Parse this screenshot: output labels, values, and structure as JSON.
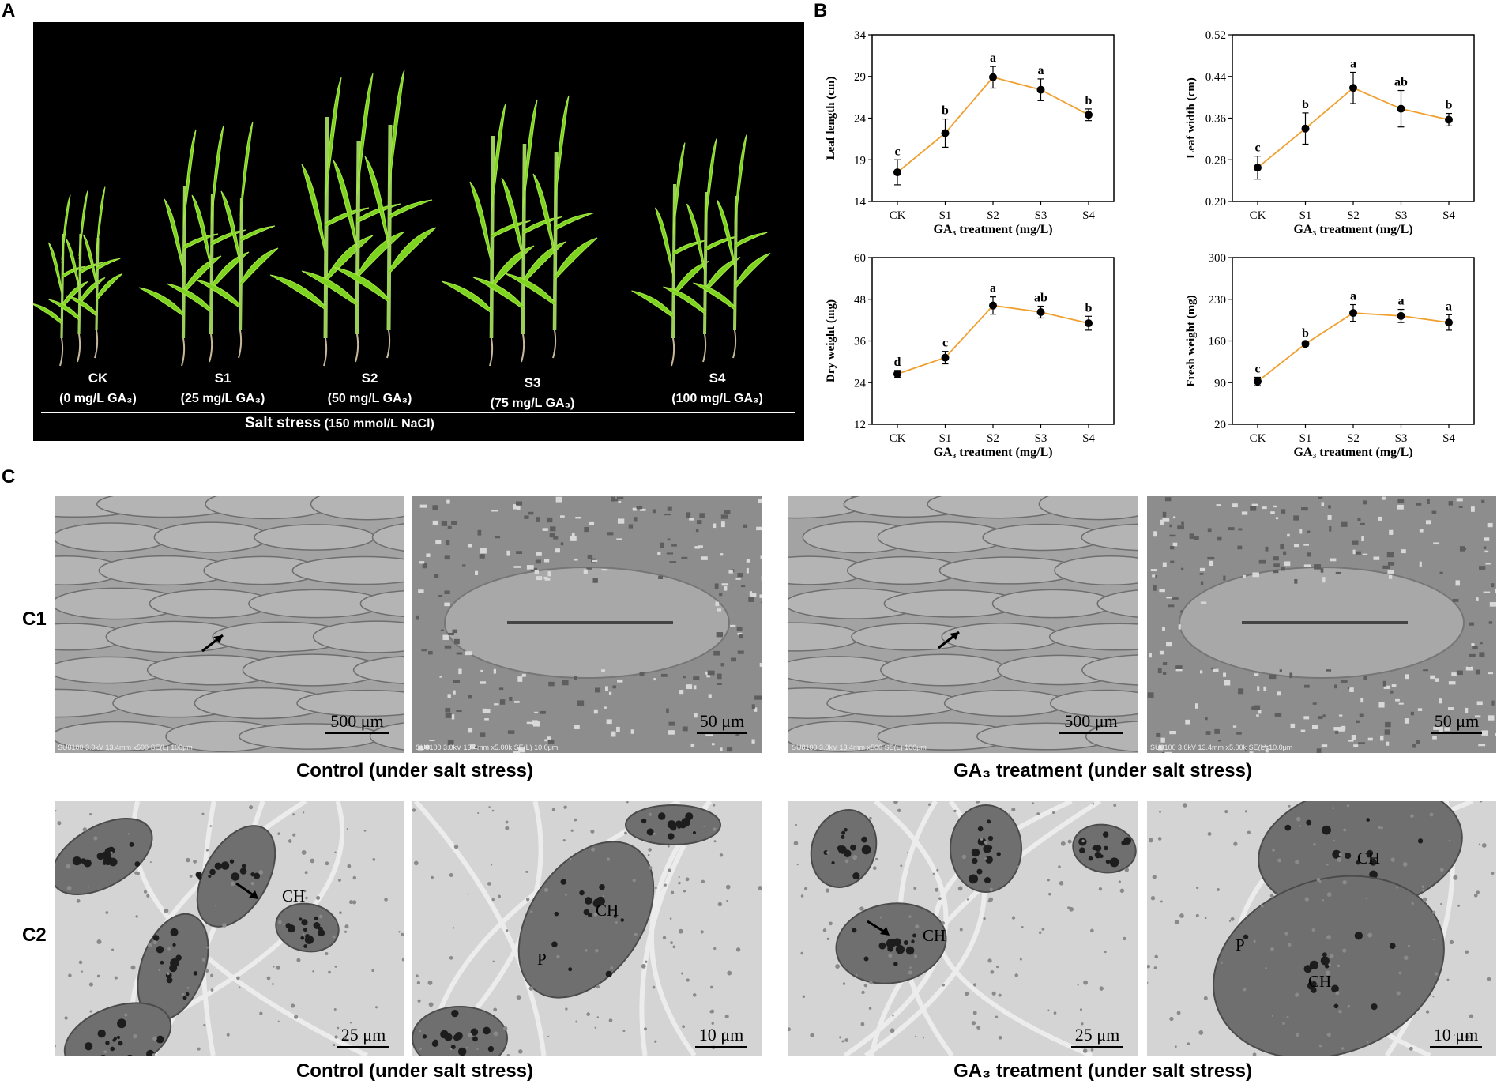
{
  "panel_labels": {
    "A": "A",
    "B": "B",
    "C": "C"
  },
  "panelA": {
    "groups": [
      {
        "code": "CK",
        "conc": "(0 mg/L GA₃)"
      },
      {
        "code": "S1",
        "conc": "(25 mg/L GA₃)"
      },
      {
        "code": "S2",
        "conc": "(50 mg/L GA₃)"
      },
      {
        "code": "S3",
        "conc": "(75 mg/L GA₃)"
      },
      {
        "code": "S4",
        "conc": "(100 mg/L GA₃)"
      }
    ],
    "salt_label": "Salt stress",
    "salt_conc": "(150 mmol/L NaCl)",
    "plant_color": "#7ed321"
  },
  "chart_data": [
    {
      "type": "line",
      "categories": [
        "CK",
        "S1",
        "S2",
        "S3",
        "S4"
      ],
      "values": [
        17.5,
        22.2,
        28.9,
        27.4,
        24.4
      ],
      "errors": [
        1.5,
        1.7,
        1.3,
        1.3,
        0.7
      ],
      "letters": [
        "c",
        "b",
        "a",
        "a",
        "b"
      ],
      "ylabel": "Leaf length (cm)",
      "xlabel": "GA₃ treatment (mg/L)",
      "ylim": [
        14,
        34
      ],
      "yticks": [
        "14",
        "19",
        "24",
        "29",
        "34"
      ],
      "line_color": "#f0a030",
      "grid": false
    },
    {
      "type": "line",
      "categories": [
        "CK",
        "S1",
        "S2",
        "S3",
        "S4"
      ],
      "values": [
        0.265,
        0.34,
        0.418,
        0.378,
        0.357
      ],
      "errors": [
        0.022,
        0.03,
        0.03,
        0.035,
        0.012
      ],
      "letters": [
        "c",
        "b",
        "a",
        "ab",
        "b"
      ],
      "ylabel": "Leaf width (cm)",
      "xlabel": "GA₃ treatment (mg/L)",
      "ylim": [
        0.2,
        0.52
      ],
      "yticks": [
        "0.20",
        "0.28",
        "0.36",
        "0.44",
        "0.52"
      ],
      "line_color": "#f0a030",
      "grid": false
    },
    {
      "type": "line",
      "categories": [
        "CK",
        "S1",
        "S2",
        "S3",
        "S4"
      ],
      "values": [
        26.5,
        31.2,
        46.2,
        44.3,
        41.1
      ],
      "errors": [
        1.0,
        1.8,
        2.5,
        1.7,
        2.0
      ],
      "letters": [
        "d",
        "c",
        "a",
        "ab",
        "b"
      ],
      "ylabel": "Dry weight (mg)",
      "xlabel": "GA₃ treatment (mg/L)",
      "ylim": [
        12,
        60
      ],
      "yticks": [
        "12",
        "24",
        "36",
        "48",
        "60"
      ],
      "line_color": "#f0a030",
      "grid": false
    },
    {
      "type": "line",
      "categories": [
        "CK",
        "S1",
        "S2",
        "S3",
        "S4"
      ],
      "values": [
        92,
        155,
        207,
        202,
        191
      ],
      "errors": [
        7,
        4,
        14,
        11,
        13
      ],
      "letters": [
        "c",
        "b",
        "a",
        "a",
        "a"
      ],
      "ylabel": "Fresh weight (mg)",
      "xlabel": "GA₃ treatment (mg/L)",
      "ylim": [
        20,
        300
      ],
      "yticks": [
        "20",
        "90",
        "160",
        "230",
        "300"
      ],
      "line_color": "#f0a030",
      "grid": false
    }
  ],
  "panelC": {
    "row1_label": "C1",
    "row2_label": "C2",
    "caption_left": "Control (under salt stress)",
    "caption_right": "GA₃ treatment (under salt stress)",
    "sem_images": [
      {
        "scale": "500 μm",
        "footer": "SU8100 3.0kV 13.4mm x500 SE(L)                                100μm"
      },
      {
        "scale": "50 μm",
        "footer": "SU8100 3.0kV 13.4mm x5.00k SE(L)                              10.0μm"
      },
      {
        "scale": "500 μm",
        "footer": "SU8100 3.0kV 13.4mm x500 SE(L)                                100μm"
      },
      {
        "scale": "50 μm",
        "footer": "SU8100 3.0kV 13.4mm x5.00k SE(L)                              10.0μm"
      }
    ],
    "tem_images": [
      {
        "scale": "25 μm",
        "labels": [
          "CH"
        ]
      },
      {
        "scale": "10 μm",
        "labels": [
          "CH",
          "P"
        ]
      },
      {
        "scale": "25 μm",
        "labels": [
          "CH"
        ]
      },
      {
        "scale": "10 μm",
        "labels": [
          "CH",
          "P",
          "CH"
        ]
      }
    ]
  }
}
